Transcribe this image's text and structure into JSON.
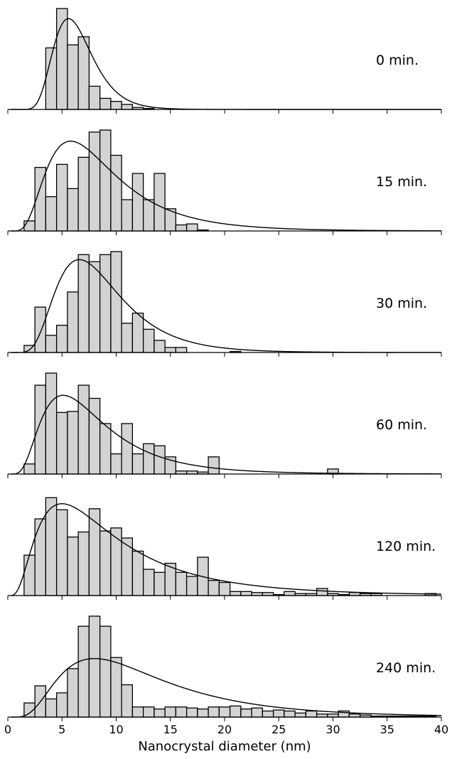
{
  "chart_data": {
    "type": "bar",
    "xlabel": "Nanocrystal diameter (nm)",
    "xlim": [
      0,
      40
    ],
    "xticks": [
      0,
      5,
      10,
      15,
      20,
      25,
      30,
      35,
      40
    ],
    "bin_width": 1,
    "bin_start": 1.5,
    "y_axis_shown": false,
    "grid": false,
    "series": [
      {
        "label": "0 min.",
        "ymax": 100,
        "values": [
          0,
          0,
          61,
          100,
          64,
          72,
          23,
          11,
          8,
          5,
          2,
          1
        ],
        "fit": {
          "type": "lognormal",
          "mode": 5.6,
          "sigma": 0.32,
          "peak": 90
        }
      },
      {
        "label": "15 min.",
        "ymax": 100,
        "values": [
          10,
          63,
          34,
          66,
          42,
          73,
          98,
          100,
          75,
          31,
          57,
          31,
          57,
          22,
          6,
          7,
          1
        ],
        "fit": {
          "type": "lognormal",
          "mode": 5.8,
          "sigma": 0.55,
          "peak": 89
        }
      },
      {
        "label": "30 min.",
        "ymax": 100,
        "values": [
          7,
          45,
          17,
          27,
          60,
          97,
          90,
          97,
          100,
          29,
          39,
          23,
          12,
          5,
          5,
          0,
          0,
          0,
          0,
          1
        ],
        "fit": {
          "type": "lognormal",
          "mode": 6.6,
          "sigma": 0.45,
          "peak": 92
        }
      },
      {
        "label": "60 min.",
        "ymax": 100,
        "values": [
          10,
          88,
          100,
          61,
          62,
          88,
          75,
          50,
          20,
          50,
          20,
          30,
          28,
          17,
          3,
          3,
          2,
          17,
          0,
          0,
          0,
          0,
          0,
          0,
          0,
          0,
          0,
          0,
          5
        ],
        "fit": {
          "type": "lognormal",
          "mode": 5.1,
          "sigma": 0.58,
          "peak": 78
        }
      },
      {
        "label": "120 min.",
        "ymax": 100,
        "values": [
          40,
          76,
          97,
          85,
          58,
          63,
          86,
          64,
          67,
          57,
          44,
          26,
          23,
          32,
          23,
          19,
          38,
          15,
          13,
          4,
          4,
          3,
          3,
          1,
          4,
          2,
          2,
          7,
          2,
          1,
          3,
          2,
          2,
          0,
          0,
          0,
          0,
          2
        ],
        "fit": {
          "type": "lognormal",
          "mode": 5.0,
          "sigma": 0.72,
          "peak": 91
        }
      },
      {
        "label": "240 min.",
        "ymax": 100,
        "values": [
          14,
          31,
          18,
          24,
          48,
          90,
          100,
          90,
          59,
          32,
          10,
          10,
          8,
          10,
          10,
          9,
          8,
          10,
          10,
          11,
          8,
          9,
          6,
          7,
          6,
          4,
          6,
          3,
          3,
          6,
          3,
          2,
          1,
          1,
          1,
          1,
          1,
          1
        ],
        "fit": {
          "type": "lognormal",
          "mode": 8.0,
          "sigma": 0.6,
          "peak": 58
        }
      }
    ]
  }
}
